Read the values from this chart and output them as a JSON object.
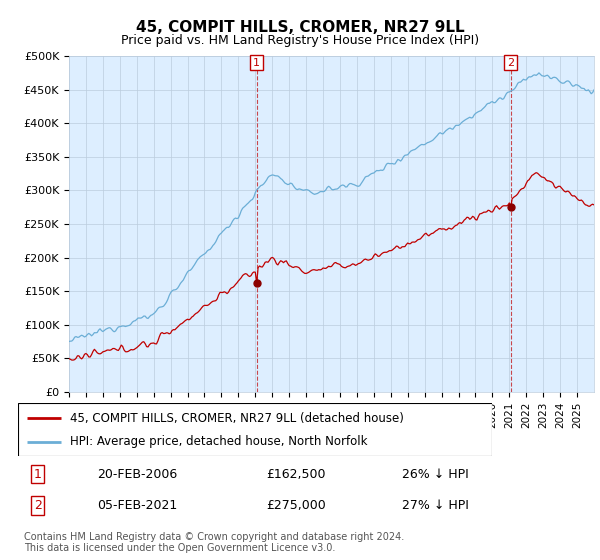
{
  "title": "45, COMPIT HILLS, CROMER, NR27 9LL",
  "subtitle": "Price paid vs. HM Land Registry's House Price Index (HPI)",
  "ylim": [
    0,
    500000
  ],
  "yticks": [
    0,
    50000,
    100000,
    150000,
    200000,
    250000,
    300000,
    350000,
    400000,
    450000,
    500000
  ],
  "ytick_labels": [
    "£0",
    "£50K",
    "£100K",
    "£150K",
    "£200K",
    "£250K",
    "£300K",
    "£350K",
    "£400K",
    "£450K",
    "£500K"
  ],
  "hpi_color": "#6baed6",
  "price_color": "#c00000",
  "marker_dot_color": "#8b0000",
  "marker1_label": "1",
  "marker2_label": "2",
  "marker1_date": "20-FEB-2006",
  "marker1_price": "£162,500",
  "marker1_hpi": "26% ↓ HPI",
  "marker2_date": "05-FEB-2021",
  "marker2_price": "£275,000",
  "marker2_hpi": "27% ↓ HPI",
  "legend_label1": "45, COMPIT HILLS, CROMER, NR27 9LL (detached house)",
  "legend_label2": "HPI: Average price, detached house, North Norfolk",
  "footer": "Contains HM Land Registry data © Crown copyright and database right 2024.\nThis data is licensed under the Open Government Licence v3.0.",
  "background_color": "#ffffff",
  "plot_bg_color": "#ddeeff",
  "grid_color": "#bbccdd",
  "year_start": 1995,
  "year_end": 2025,
  "n_months": 373
}
